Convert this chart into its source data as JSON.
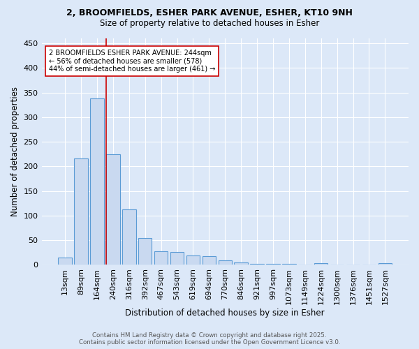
{
  "title_line1": "2, BROOMFIELDS, ESHER PARK AVENUE, ESHER, KT10 9NH",
  "title_line2": "Size of property relative to detached houses in Esher",
  "xlabel": "Distribution of detached houses by size in Esher",
  "ylabel": "Number of detached properties",
  "bar_labels": [
    "13sqm",
    "89sqm",
    "164sqm",
    "240sqm",
    "316sqm",
    "392sqm",
    "467sqm",
    "543sqm",
    "619sqm",
    "694sqm",
    "770sqm",
    "846sqm",
    "921sqm",
    "997sqm",
    "1073sqm",
    "1149sqm",
    "1224sqm",
    "1300sqm",
    "1376sqm",
    "1451sqm",
    "1527sqm"
  ],
  "bar_values": [
    15,
    216,
    338,
    224,
    113,
    54,
    27,
    26,
    19,
    17,
    9,
    5,
    2,
    2,
    2,
    0,
    3,
    0,
    0,
    0,
    3
  ],
  "bar_color": "#c9d9f0",
  "bar_edge_color": "#5b9bd5",
  "red_line_color": "#cc0000",
  "red_line_index": 3,
  "annotation_text": "2 BROOMFIELDS ESHER PARK AVENUE: 244sqm\n← 56% of detached houses are smaller (578)\n44% of semi-detached houses are larger (461) →",
  "annotation_box_color": "white",
  "annotation_box_edge": "#cc0000",
  "background_color": "#dce8f8",
  "grid_color": "white",
  "footer_line1": "Contains HM Land Registry data © Crown copyright and database right 2025.",
  "footer_line2": "Contains public sector information licensed under the Open Government Licence v3.0.",
  "ylim_max": 460,
  "yticks": [
    0,
    50,
    100,
    150,
    200,
    250,
    300,
    350,
    400,
    450
  ]
}
